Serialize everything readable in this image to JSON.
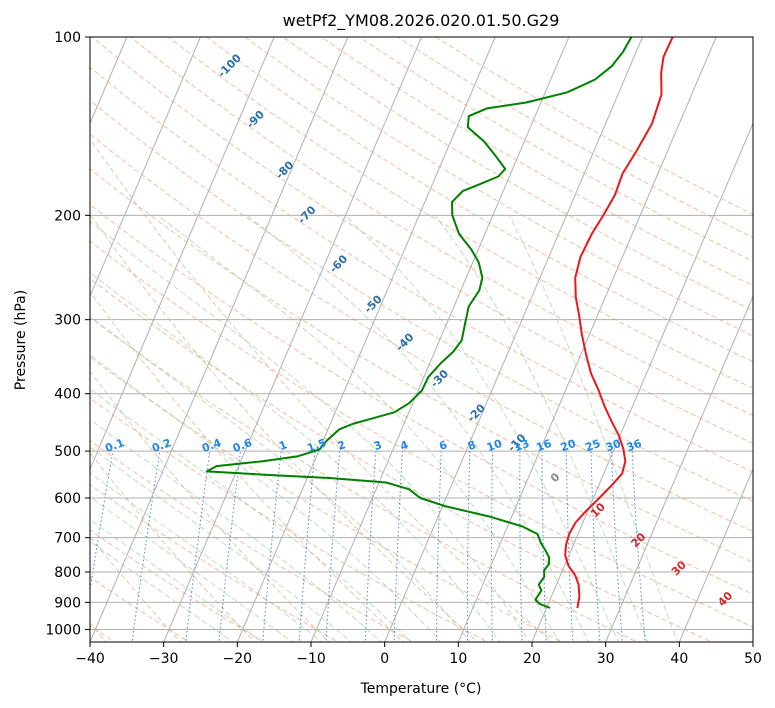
{
  "chart_data": {
    "type": "line",
    "title": "wetPf2_YM08.2026.020.01.50.G29",
    "xlabel": "Temperature (°C)",
    "ylabel": "Pressure (hPa)",
    "xlim": [
      -40,
      50
    ],
    "ylim": [
      1050,
      100
    ],
    "y_scale": "log",
    "x_ticks": [
      -40,
      -30,
      -20,
      -10,
      0,
      10,
      20,
      30,
      40,
      50
    ],
    "y_ticks": [
      100,
      200,
      300,
      400,
      500,
      600,
      700,
      800,
      900,
      1000
    ],
    "x_tick_labels": [
      "−40",
      "−30",
      "−20",
      "−10",
      "0",
      "10",
      "20",
      "30",
      "40",
      "50"
    ],
    "y_tick_labels": [
      "100",
      "200",
      "300",
      "400",
      "500",
      "600",
      "700",
      "800",
      "900",
      "1000"
    ],
    "grid": true,
    "isotherm_labels": [
      "-100",
      "-90",
      "-80",
      "-70",
      "-60",
      "-50",
      "-40",
      "-30",
      "-20",
      "-10",
      "0",
      "10",
      "20",
      "30",
      "40"
    ],
    "mixing_ratio_labels": [
      "0.1",
      "0.2",
      "0.4",
      "0.6",
      "1",
      "1.5",
      "2",
      "3",
      "4",
      "6",
      "8",
      "10",
      "13",
      "16",
      "20",
      "25",
      "30",
      "36"
    ],
    "series": [
      {
        "color": "#e8191c",
        "points": [
          [
            24.2,
            920
          ],
          [
            23.8,
            880
          ],
          [
            23.0,
            840
          ],
          [
            22.0,
            810
          ],
          [
            20.5,
            780
          ],
          [
            19.5,
            750
          ],
          [
            19.0,
            720
          ],
          [
            18.8,
            690
          ],
          [
            19.0,
            660
          ],
          [
            19.8,
            630
          ],
          [
            20.8,
            600
          ],
          [
            21.8,
            570
          ],
          [
            22.5,
            545
          ],
          [
            22.2,
            520
          ],
          [
            21.2,
            495
          ],
          [
            19.8,
            470
          ],
          [
            18.0,
            445
          ],
          [
            16.2,
            420
          ],
          [
            14.5,
            395
          ],
          [
            12.5,
            370
          ],
          [
            10.8,
            345
          ],
          [
            9.0,
            318
          ],
          [
            7.5,
            295
          ],
          [
            6.0,
            275
          ],
          [
            4.8,
            255
          ],
          [
            4.3,
            235
          ],
          [
            4.5,
            215
          ],
          [
            5.0,
            200
          ],
          [
            5.4,
            185
          ],
          [
            5.2,
            170
          ],
          [
            5.8,
            155
          ],
          [
            6.3,
            140
          ],
          [
            5.9,
            125
          ],
          [
            4.6,
            115
          ],
          [
            4.0,
            108
          ],
          [
            4.1,
            100
          ]
        ]
      },
      {
        "color": "#008000",
        "points": [
          [
            20.5,
            920
          ],
          [
            18.8,
            905
          ],
          [
            18.0,
            890
          ],
          [
            18.3,
            860
          ],
          [
            17.6,
            840
          ],
          [
            17.9,
            815
          ],
          [
            17.5,
            795
          ],
          [
            17.8,
            775
          ],
          [
            17.4,
            755
          ],
          [
            16.5,
            735
          ],
          [
            15.5,
            715
          ],
          [
            14.5,
            690
          ],
          [
            12.0,
            670
          ],
          [
            7.0,
            645
          ],
          [
            0.5,
            620
          ],
          [
            -3.5,
            600
          ],
          [
            -5.5,
            580
          ],
          [
            -9.0,
            565
          ],
          [
            -17.0,
            555
          ],
          [
            -26.0,
            548
          ],
          [
            -34.0,
            541
          ],
          [
            -33.0,
            530
          ],
          [
            -27.0,
            520
          ],
          [
            -22.5,
            510
          ],
          [
            -20.0,
            497
          ],
          [
            -19.5,
            480
          ],
          [
            -18.5,
            460
          ],
          [
            -17.0,
            450
          ],
          [
            -14.5,
            440
          ],
          [
            -12.0,
            430
          ],
          [
            -10.5,
            415
          ],
          [
            -9.5,
            395
          ],
          [
            -9.4,
            375
          ],
          [
            -8.5,
            355
          ],
          [
            -7.5,
            340
          ],
          [
            -7.0,
            325
          ],
          [
            -7.5,
            305
          ],
          [
            -8.0,
            285
          ],
          [
            -7.5,
            268
          ],
          [
            -7.8,
            255
          ],
          [
            -9.2,
            240
          ],
          [
            -11.0,
            228
          ],
          [
            -13.5,
            215
          ],
          [
            -15.5,
            200
          ],
          [
            -16.3,
            190
          ],
          [
            -15.5,
            182
          ],
          [
            -13.5,
            177
          ],
          [
            -11.5,
            172
          ],
          [
            -11.0,
            167
          ],
          [
            -13.0,
            159
          ],
          [
            -15.5,
            150
          ],
          [
            -18.5,
            142
          ],
          [
            -19.0,
            136
          ],
          [
            -17.0,
            132
          ],
          [
            -12.0,
            129
          ],
          [
            -7.0,
            124
          ],
          [
            -4.0,
            118
          ],
          [
            -2.5,
            112
          ],
          [
            -1.8,
            106
          ],
          [
            -1.5,
            100
          ]
        ]
      }
    ]
  }
}
